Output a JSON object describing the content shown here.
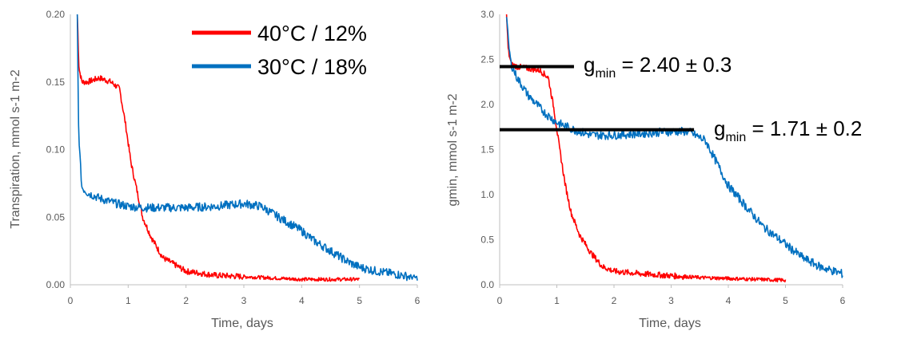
{
  "chart_data": [
    {
      "type": "line",
      "title": "",
      "xlabel": "Time, days",
      "ylabel": "Transpiration, mmol s-1 m-2",
      "xlim": [
        0,
        6
      ],
      "ylim": [
        0,
        0.2
      ],
      "x_ticks": [
        "0",
        "1",
        "2",
        "3",
        "4",
        "5",
        "6"
      ],
      "y_ticks": [
        "0.00",
        "0.05",
        "0.10",
        "0.15",
        "0.20"
      ],
      "grid": false,
      "legend_position": "top-right",
      "series": [
        {
          "name": "40°C / 12%",
          "color": "#ff0000",
          "x": [
            0.12,
            0.15,
            0.2,
            0.3,
            0.5,
            0.7,
            0.85,
            0.95,
            1.05,
            1.15,
            1.25,
            1.4,
            1.6,
            1.8,
            2.0,
            2.5,
            3.0,
            3.5,
            4.0,
            4.5,
            5.0
          ],
          "y": [
            0.2,
            0.16,
            0.15,
            0.15,
            0.153,
            0.15,
            0.145,
            0.12,
            0.09,
            0.07,
            0.05,
            0.035,
            0.02,
            0.015,
            0.01,
            0.007,
            0.006,
            0.005,
            0.004,
            0.004,
            0.004
          ]
        },
        {
          "name": "30°C / 18%",
          "color": "#0070c0",
          "x": [
            0.12,
            0.14,
            0.17,
            0.2,
            0.3,
            0.5,
            0.8,
            1.0,
            1.3,
            1.5,
            2.0,
            2.5,
            3.0,
            3.3,
            3.6,
            3.8,
            4.0,
            4.2,
            4.5,
            4.8,
            5.0,
            5.3,
            5.6,
            6.0
          ],
          "y": [
            0.2,
            0.12,
            0.09,
            0.072,
            0.068,
            0.064,
            0.06,
            0.058,
            0.057,
            0.057,
            0.057,
            0.058,
            0.06,
            0.058,
            0.05,
            0.045,
            0.04,
            0.033,
            0.025,
            0.017,
            0.013,
            0.01,
            0.008,
            0.005
          ]
        }
      ]
    },
    {
      "type": "line",
      "title": "",
      "xlabel": "Time, days",
      "ylabel": "gmin, mmol s-1 m-2",
      "xlim": [
        0,
        6
      ],
      "ylim": [
        0,
        3
      ],
      "x_ticks": [
        "0",
        "1",
        "2",
        "3",
        "4",
        "5",
        "6"
      ],
      "y_ticks": [
        "0.0",
        "0.5",
        "1.0",
        "1.5",
        "2.0",
        "2.5",
        "3.0"
      ],
      "grid": false,
      "series": [
        {
          "color": "#ff0000",
          "x": [
            0.12,
            0.15,
            0.2,
            0.3,
            0.5,
            0.7,
            0.85,
            0.95,
            1.05,
            1.15,
            1.25,
            1.4,
            1.6,
            1.8,
            2.0,
            2.5,
            3.0,
            3.5,
            4.0,
            4.5,
            5.0
          ],
          "y": [
            3.0,
            2.6,
            2.45,
            2.42,
            2.4,
            2.38,
            2.3,
            1.95,
            1.5,
            1.1,
            0.8,
            0.55,
            0.35,
            0.2,
            0.15,
            0.12,
            0.1,
            0.08,
            0.07,
            0.06,
            0.05
          ]
        },
        {
          "color": "#0070c0",
          "x": [
            0.12,
            0.15,
            0.2,
            0.3,
            0.5,
            0.8,
            1.0,
            1.3,
            1.6,
            2.0,
            2.5,
            3.0,
            3.3,
            3.6,
            3.8,
            4.0,
            4.2,
            4.4,
            4.6,
            4.8,
            5.0,
            5.3,
            5.6,
            6.0
          ],
          "y": [
            3.0,
            2.7,
            2.45,
            2.3,
            2.1,
            1.9,
            1.8,
            1.72,
            1.66,
            1.66,
            1.68,
            1.7,
            1.7,
            1.6,
            1.35,
            1.1,
            0.95,
            0.8,
            0.65,
            0.55,
            0.45,
            0.3,
            0.2,
            0.12
          ]
        }
      ],
      "annotations": [
        {
          "label": "g",
          "subscript": "min",
          "text": " = 2.40 ± 0.3",
          "y": 2.42,
          "x_start": 0.0,
          "x_end": 1.3
        },
        {
          "label": "g",
          "subscript": "min",
          "text": " = 1.71 ± 0.2",
          "y": 1.72,
          "x_start": 0.0,
          "x_end": 3.4
        }
      ]
    }
  ]
}
